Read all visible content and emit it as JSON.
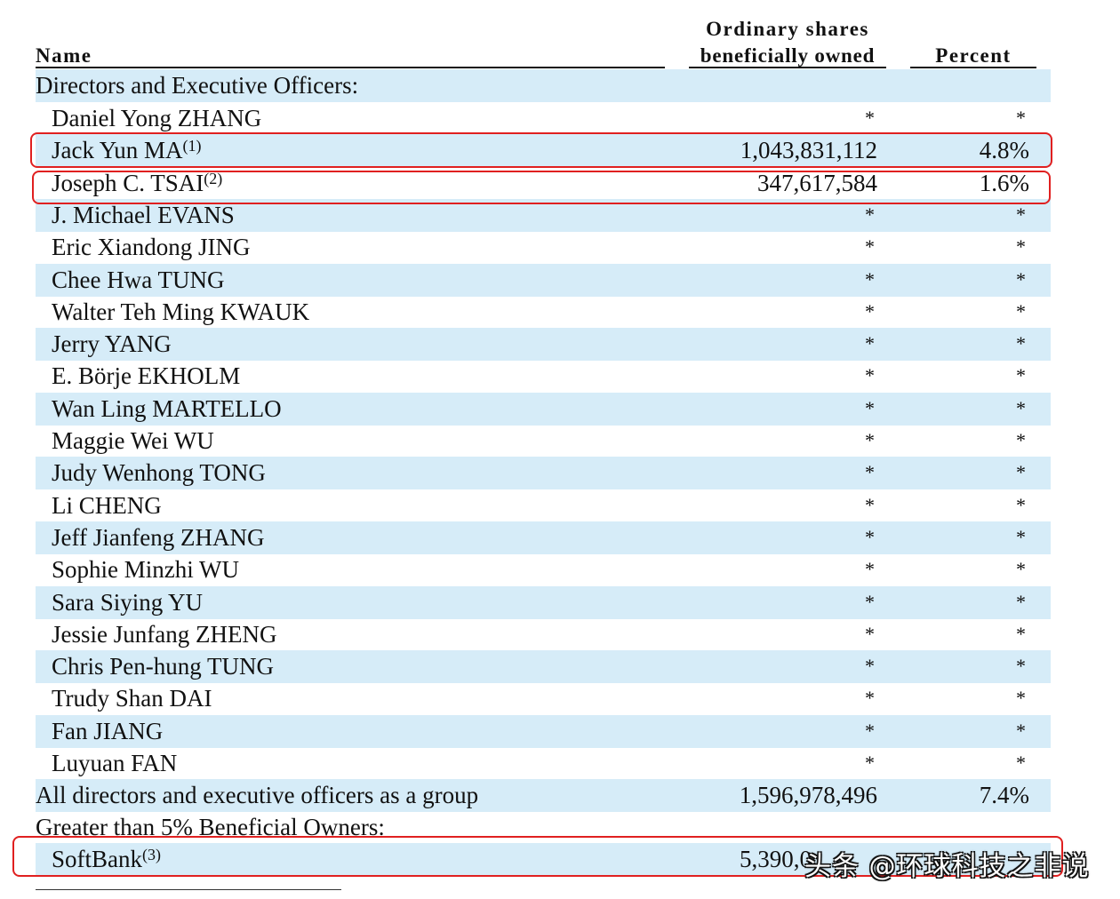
{
  "header": {
    "name": "Name",
    "shares_line1": "Ordinary shares",
    "shares_line2": "beneficially owned",
    "percent": "Percent"
  },
  "sections": {
    "directors": "Directors and Executive Officers:",
    "greater_than_5": "Greater than 5% Beneficial Owners:"
  },
  "rows": [
    {
      "name": "Daniel Yong ZHANG",
      "note": "",
      "shares": "*",
      "percent": "*"
    },
    {
      "name": "Jack Yun MA",
      "note": "(1)",
      "shares": "1,043,831,112",
      "percent": "4.8%"
    },
    {
      "name": "Joseph C. TSAI",
      "note": "(2)",
      "shares": "347,617,584",
      "percent": "1.6%"
    },
    {
      "name": "J. Michael EVANS",
      "note": "",
      "shares": "*",
      "percent": "*"
    },
    {
      "name": "Eric Xiandong JING",
      "note": "",
      "shares": "*",
      "percent": "*"
    },
    {
      "name": "Chee Hwa TUNG",
      "note": "",
      "shares": "*",
      "percent": "*"
    },
    {
      "name": "Walter Teh Ming KWAUK",
      "note": "",
      "shares": "*",
      "percent": "*"
    },
    {
      "name": "Jerry YANG",
      "note": "",
      "shares": "*",
      "percent": "*"
    },
    {
      "name": "E. Börje EKHOLM",
      "note": "",
      "shares": "*",
      "percent": "*"
    },
    {
      "name": "Wan Ling MARTELLO",
      "note": "",
      "shares": "*",
      "percent": "*"
    },
    {
      "name": "Maggie Wei WU",
      "note": "",
      "shares": "*",
      "percent": "*"
    },
    {
      "name": "Judy Wenhong TONG",
      "note": "",
      "shares": "*",
      "percent": "*"
    },
    {
      "name": "Li CHENG",
      "note": "",
      "shares": "*",
      "percent": "*"
    },
    {
      "name": "Jeff Jianfeng ZHANG",
      "note": "",
      "shares": "*",
      "percent": "*"
    },
    {
      "name": "Sophie Minzhi WU",
      "note": "",
      "shares": "*",
      "percent": "*"
    },
    {
      "name": "Sara Siying YU",
      "note": "",
      "shares": "*",
      "percent": "*"
    },
    {
      "name": "Jessie Junfang ZHENG",
      "note": "",
      "shares": "*",
      "percent": "*"
    },
    {
      "name": "Chris Pen-hung TUNG",
      "note": "",
      "shares": "*",
      "percent": "*"
    },
    {
      "name": "Trudy Shan DAI",
      "note": "",
      "shares": "*",
      "percent": "*"
    },
    {
      "name": "Fan JIANG",
      "note": "",
      "shares": "*",
      "percent": "*"
    },
    {
      "name": "Luyuan FAN",
      "note": "",
      "shares": "*",
      "percent": "*"
    }
  ],
  "group_total": {
    "name": "All directors and executive officers as a group",
    "shares": "1,596,978,496",
    "percent": "7.4%"
  },
  "softbank": {
    "name": "SoftBank",
    "note": "(3)",
    "shares_visible": "5,390,0"
  },
  "watermark": "头条 @环球科技之非说",
  "colors": {
    "row_shade": "#d6ecf8",
    "highlight": "#e02020"
  }
}
